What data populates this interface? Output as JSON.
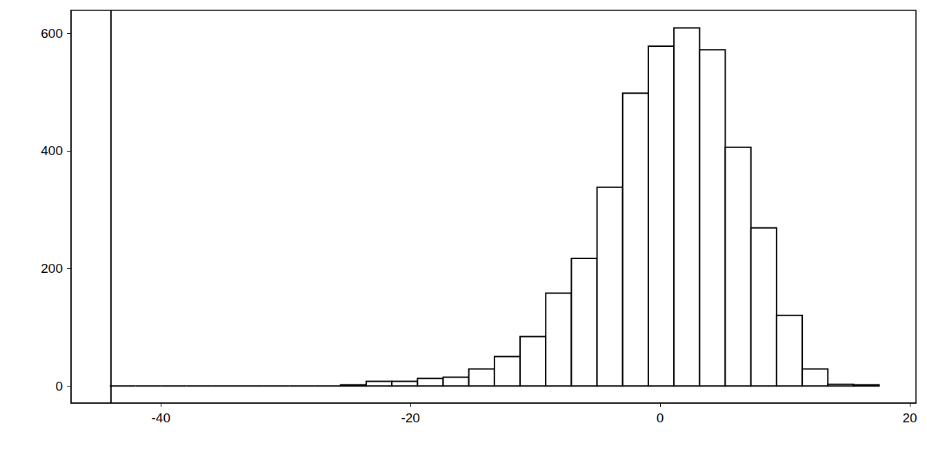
{
  "chart_data": {
    "type": "histogram",
    "bins": [
      -44.1,
      -42.045,
      -39.99,
      -37.935,
      -35.88,
      -33.825,
      -31.77,
      -29.715,
      -27.66,
      -25.605,
      -23.55,
      -21.495,
      -19.44,
      -17.385,
      -15.33,
      -13.275,
      -11.22,
      -9.165,
      -7.11,
      -5.055,
      -3,
      -0.945,
      1.11,
      3.165,
      5.22,
      7.275,
      9.33,
      11.385,
      13.44,
      15.495,
      17.55
    ],
    "values": [
      0,
      0,
      0,
      0,
      0,
      0,
      0,
      0,
      0,
      2,
      8,
      8,
      13,
      15,
      29,
      50,
      84,
      158,
      217,
      338,
      498,
      578,
      609,
      572,
      406,
      269,
      120,
      29,
      3,
      2
    ],
    "color": "#ffffff",
    "xline": -44,
    "xlim": [
      -47.2,
      20.5
    ],
    "xticks": [
      -40,
      -20,
      0,
      20
    ],
    "ylim": [
      -29,
      639
    ],
    "yticks": [
      0,
      200,
      400,
      600
    ],
    "grid": false
  }
}
